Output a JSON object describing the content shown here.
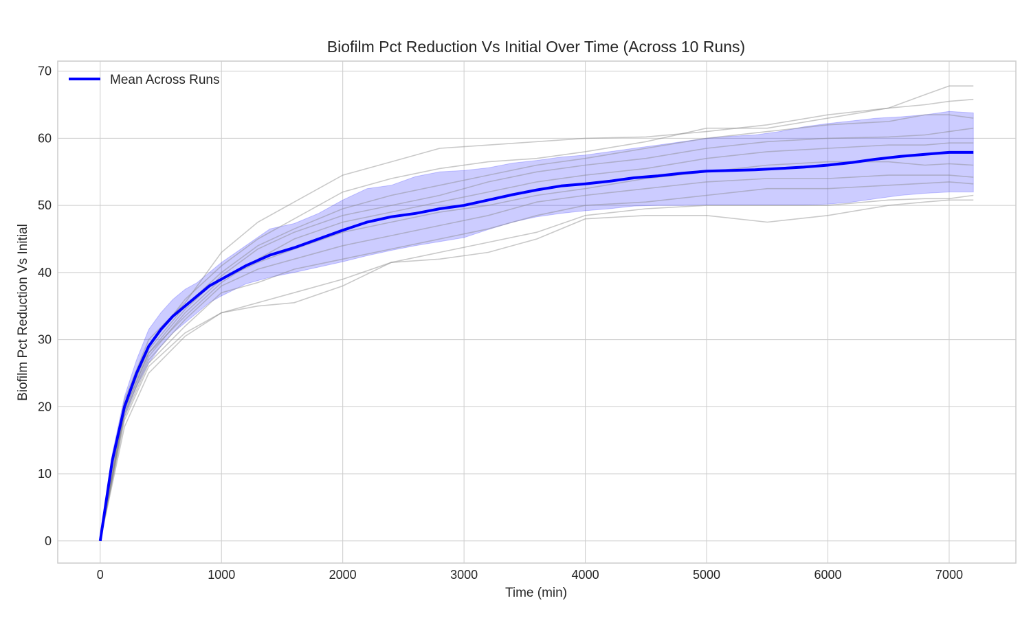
{
  "chart_data": {
    "type": "line",
    "title": "Biofilm Pct Reduction Vs Initial Over Time (Across 10 Runs)",
    "xlabel": "Time (min)",
    "ylabel": "Biofilm Pct Reduction Vs Initial",
    "xlim": [
      -350,
      7550
    ],
    "ylim": [
      -3.3,
      71.5
    ],
    "x_ticks": [
      0,
      1000,
      2000,
      3000,
      4000,
      5000,
      6000,
      7000
    ],
    "y_ticks": [
      0,
      10,
      20,
      30,
      40,
      50,
      60,
      70
    ],
    "grid": true,
    "legend_position": "top-left",
    "colors": {
      "mean": "#0000ff",
      "band": "#0000ff",
      "runs": "#888888",
      "grid": "#cccccc",
      "frame": "#cccccc"
    },
    "mean_series": {
      "name": "Mean Across Runs",
      "x": [
        0,
        100,
        200,
        300,
        400,
        500,
        600,
        700,
        800,
        900,
        1000,
        1200,
        1400,
        1600,
        1800,
        2000,
        2200,
        2400,
        2600,
        2800,
        3000,
        3200,
        3400,
        3600,
        3800,
        4000,
        4200,
        4400,
        4600,
        4800,
        5000,
        5200,
        5400,
        5600,
        5800,
        6000,
        6200,
        6400,
        6600,
        6800,
        7000,
        7200
      ],
      "y": [
        0,
        12,
        20,
        25,
        29,
        31.5,
        33.5,
        35,
        36.5,
        38,
        39,
        41,
        42.6,
        43.7,
        45,
        46.3,
        47.5,
        48.3,
        48.8,
        49.5,
        50,
        50.8,
        51.6,
        52.3,
        52.9,
        53.2,
        53.6,
        54.1,
        54.4,
        54.8,
        55.1,
        55.2,
        55.3,
        55.5,
        55.7,
        56,
        56.4,
        56.9,
        57.3,
        57.6,
        57.9,
        57.9
      ]
    },
    "band": {
      "x": [
        0,
        100,
        200,
        300,
        400,
        500,
        600,
        700,
        800,
        900,
        1000,
        1200,
        1400,
        1600,
        1800,
        2000,
        2200,
        2400,
        2600,
        2800,
        3000,
        3200,
        3400,
        3600,
        3800,
        4000,
        4200,
        4400,
        4600,
        4800,
        5000,
        5200,
        5400,
        5600,
        5800,
        6000,
        6200,
        6400,
        6600,
        6800,
        7000,
        7200
      ],
      "lower": [
        0,
        11,
        18.5,
        23,
        26.5,
        29,
        31,
        32.5,
        34,
        35.5,
        36.5,
        38.3,
        39.3,
        40,
        40.8,
        41.6,
        42.5,
        43.3,
        44,
        44.6,
        45.2,
        46.4,
        47.5,
        48.3,
        48.8,
        49.2,
        49.5,
        49.9,
        50,
        50,
        50.1,
        50.1,
        50.1,
        50.1,
        50.1,
        50.2,
        50.5,
        51,
        51.5,
        51.8,
        52,
        52
      ],
      "upper": [
        0,
        13,
        21.5,
        27,
        31.5,
        34,
        36,
        37.5,
        38.5,
        40,
        41.5,
        44,
        46.5,
        47.3,
        48.8,
        50.8,
        52.5,
        53,
        54.3,
        55,
        55.2,
        55.6,
        56.3,
        56.7,
        57.2,
        57.5,
        58,
        58.5,
        59,
        59.5,
        60,
        60.3,
        60.5,
        61,
        61.7,
        62.2,
        62.6,
        63,
        63.2,
        63.5,
        64,
        63.8
      ]
    },
    "runs": [
      {
        "x": [
          0,
          200,
          400,
          700,
          1000,
          1300,
          1600,
          2000,
          2400,
          2800,
          3200,
          3600,
          4000,
          4500,
          5000,
          5500,
          6000,
          6500,
          6800,
          7000,
          7200
        ],
        "y": [
          0,
          21,
          30,
          35.5,
          43,
          47.5,
          50.5,
          54.5,
          56.5,
          58.5,
          59,
          59.5,
          60,
          60.2,
          61,
          62,
          63.5,
          64.5,
          66.5,
          67.8,
          67.8
        ]
      },
      {
        "x": [
          0,
          200,
          400,
          700,
          1000,
          1300,
          1600,
          2000,
          2400,
          2800,
          3200,
          3600,
          4000,
          4500,
          5000,
          5500,
          6000,
          6500,
          6800,
          7000,
          7200
        ],
        "y": [
          0,
          20,
          29,
          36,
          41,
          45,
          48,
          52,
          54,
          55.5,
          56.5,
          57,
          58,
          59.5,
          61.5,
          61.5,
          63,
          64.5,
          65,
          65.5,
          65.8
        ]
      },
      {
        "x": [
          0,
          200,
          400,
          700,
          1000,
          1300,
          1600,
          2000,
          2400,
          2800,
          3200,
          3600,
          4000,
          4500,
          5000,
          5500,
          6000,
          6500,
          6800,
          7000,
          7200
        ],
        "y": [
          0,
          20,
          28.5,
          35,
          40,
          44,
          46.5,
          49.5,
          51.5,
          53,
          54.5,
          56,
          57,
          58.5,
          60,
          61,
          62,
          62.5,
          63.5,
          63.5,
          63
        ]
      },
      {
        "x": [
          0,
          200,
          400,
          700,
          1000,
          1300,
          1600,
          2000,
          2400,
          2800,
          3200,
          3600,
          4000,
          4500,
          5000,
          5500,
          6000,
          6500,
          6800,
          7000,
          7200
        ],
        "y": [
          0,
          19.5,
          28,
          34.5,
          39.5,
          43.5,
          46,
          48.5,
          50,
          51.5,
          53.5,
          55,
          56,
          57,
          58.5,
          59.5,
          60,
          60.2,
          60.5,
          61,
          61.5
        ]
      },
      {
        "x": [
          0,
          200,
          400,
          700,
          1000,
          1300,
          1600,
          2000,
          2400,
          2800,
          3200,
          3600,
          4000,
          4500,
          5000,
          5500,
          6000,
          6500,
          6800,
          7000,
          7200
        ],
        "y": [
          0,
          19.5,
          28,
          33.5,
          38.5,
          42,
          45,
          47.5,
          49,
          50.5,
          52,
          53.5,
          54.5,
          55.5,
          57,
          58,
          58.5,
          59,
          59,
          59.3,
          59.3
        ]
      },
      {
        "x": [
          0,
          200,
          400,
          700,
          1000,
          1300,
          1600,
          2000,
          2400,
          2800,
          3200,
          3600,
          4000,
          4500,
          5000,
          5500,
          6000,
          6500,
          6800,
          7000,
          7200
        ],
        "y": [
          0,
          19,
          27.5,
          34,
          39,
          41.5,
          43.5,
          46,
          47.5,
          49,
          50,
          51.5,
          52.5,
          54,
          55,
          56,
          56.5,
          56.5,
          56,
          56.2,
          56
        ]
      },
      {
        "x": [
          0,
          200,
          400,
          700,
          1000,
          1300,
          1600,
          2000,
          2400,
          2800,
          3200,
          3600,
          4000,
          4500,
          5000,
          5500,
          6000,
          6500,
          6800,
          7000,
          7200
        ],
        "y": [
          0,
          19,
          27,
          33,
          38,
          40.5,
          42,
          44,
          45.5,
          47,
          48.5,
          50.5,
          51.5,
          52.5,
          53.5,
          54,
          54,
          54.5,
          54.5,
          54.5,
          54.2
        ]
      },
      {
        "x": [
          0,
          200,
          400,
          700,
          1000,
          1300,
          1600,
          2000,
          2400,
          2800,
          3200,
          3600,
          4000,
          4500,
          5000,
          5500,
          6000,
          6500,
          6800,
          7000,
          7200
        ],
        "y": [
          0,
          18.5,
          26.5,
          32,
          37,
          38.5,
          40.5,
          42,
          43.5,
          45,
          46.5,
          48.5,
          50,
          50.5,
          51.5,
          52.5,
          52.5,
          53,
          53.3,
          53.5,
          53.2
        ]
      },
      {
        "x": [
          0,
          200,
          400,
          700,
          1000,
          1300,
          1600,
          2000,
          2400,
          2800,
          3200,
          3600,
          4000,
          4500,
          5000,
          5500,
          6000,
          6500,
          6800,
          7000,
          7200
        ],
        "y": [
          0,
          18,
          26,
          31,
          34,
          35.5,
          37,
          39,
          41.5,
          43,
          44.5,
          46,
          48.5,
          49.5,
          50,
          50,
          50,
          50.8,
          51,
          51,
          51.5
        ]
      },
      {
        "x": [
          0,
          200,
          400,
          700,
          1000,
          1300,
          1600,
          2000,
          2400,
          2800,
          3200,
          3600,
          4000,
          4500,
          5000,
          5500,
          6000,
          6500,
          6800,
          7000,
          7200
        ],
        "y": [
          0,
          17,
          25,
          30.5,
          34,
          35,
          35.5,
          38,
          41.5,
          42,
          43,
          45,
          48,
          48.5,
          48.5,
          47.5,
          48.5,
          50,
          50.5,
          50.8,
          50.8
        ]
      }
    ]
  }
}
